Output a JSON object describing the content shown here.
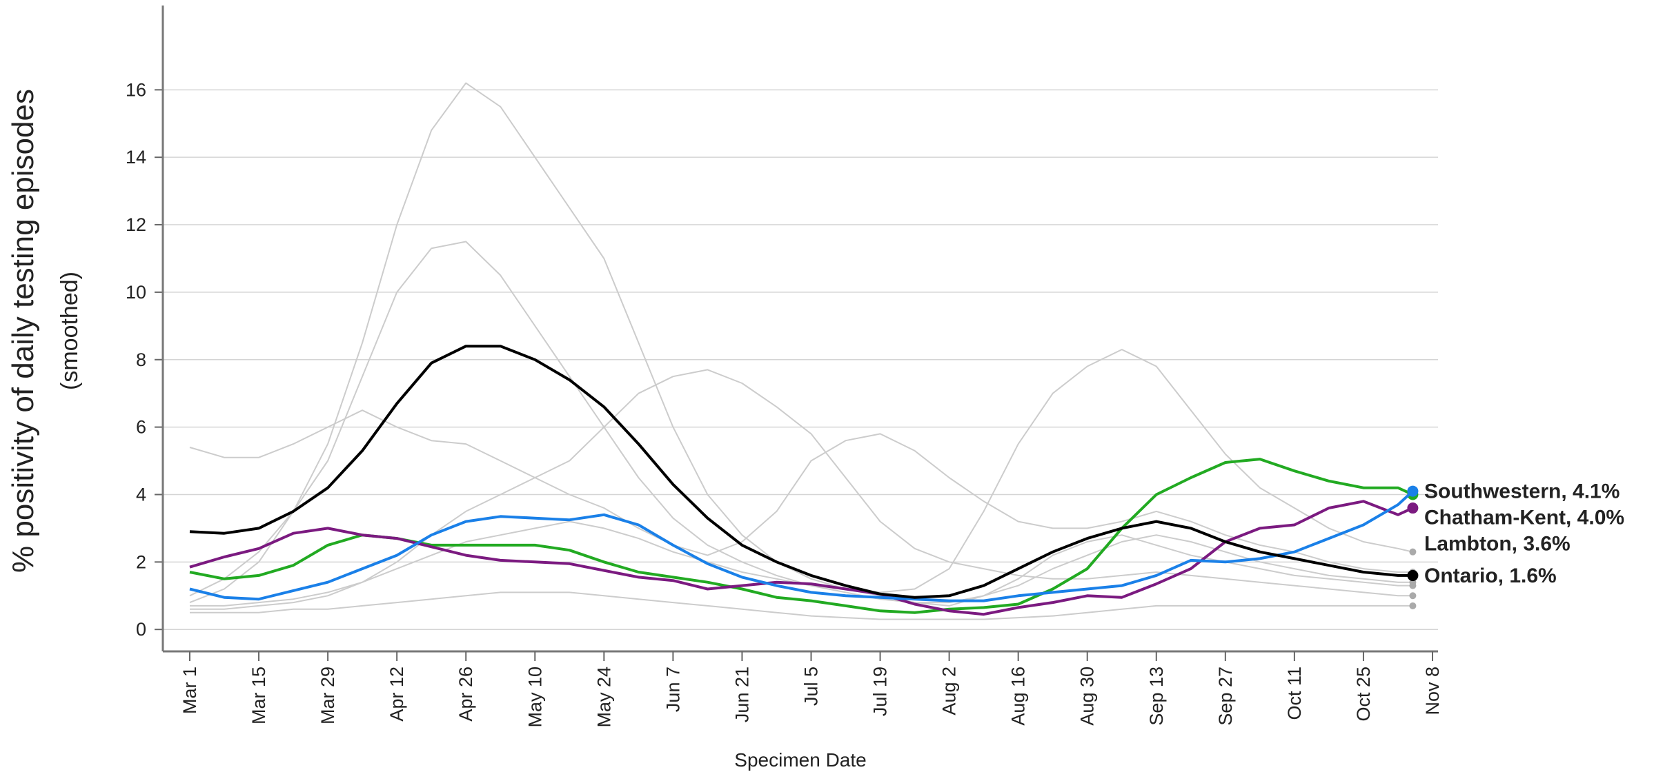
{
  "chart_data": {
    "type": "line",
    "y_label": "% positivity of daily testing episodes",
    "y_sublabel": "(smoothed)",
    "x_label": "Specimen Date",
    "x": [
      "Mar 1",
      "Mar 8",
      "Mar 15",
      "Mar 22",
      "Mar 29",
      "Apr 5",
      "Apr 12",
      "Apr 19",
      "Apr 26",
      "May 3",
      "May 10",
      "May 17",
      "May 24",
      "May 31",
      "Jun 7",
      "Jun 14",
      "Jun 21",
      "Jun 28",
      "Jul 5",
      "Jul 12",
      "Jul 19",
      "Jul 26",
      "Aug 2",
      "Aug 9",
      "Aug 16",
      "Aug 23",
      "Aug 30",
      "Sep 6",
      "Sep 13",
      "Sep 20",
      "Sep 27",
      "Oct 4",
      "Oct 11",
      "Oct 18",
      "Oct 25",
      "Nov 1",
      "Nov 4"
    ],
    "xticks": [
      "Mar 1",
      "Mar 15",
      "Mar 29",
      "Apr 12",
      "Apr 26",
      "May 10",
      "May 24",
      "Jun 7",
      "Jun 21",
      "Jul 5",
      "Jul 19",
      "Aug 2",
      "Aug 16",
      "Aug 30",
      "Sep 13",
      "Sep 27",
      "Oct 11",
      "Oct 25",
      "Nov 8"
    ],
    "ylim": [
      -0.65,
      18.5
    ],
    "yticks": [
      0,
      2,
      4,
      6,
      8,
      10,
      12,
      14,
      16
    ],
    "grid": true,
    "series": [
      {
        "color": "#cccccc",
        "values": [
          0.8,
          1.2,
          2.0,
          3.5,
          5.5,
          8.5,
          12.0,
          14.8,
          16.2,
          15.5,
          14.0,
          12.5,
          11.0,
          8.5,
          6.0,
          4.0,
          2.8,
          2.0,
          1.5,
          1.2,
          1.0,
          0.8,
          0.7,
          1.0,
          1.5,
          2.2,
          2.6,
          2.8,
          2.5,
          2.2,
          2.0,
          1.8,
          1.6,
          1.5,
          1.4,
          1.3,
          1.3
        ]
      },
      {
        "color": "#cccccc",
        "values": [
          1.0,
          1.5,
          2.3,
          3.5,
          5.0,
          7.5,
          10.0,
          11.3,
          11.5,
          10.5,
          9.0,
          7.5,
          6.0,
          4.5,
          3.3,
          2.5,
          2.0,
          1.6,
          1.3,
          1.1,
          0.9,
          0.8,
          0.8,
          1.0,
          1.3,
          1.8,
          2.2,
          2.6,
          2.8,
          2.6,
          2.3,
          2.0,
          1.8,
          1.6,
          1.5,
          1.4,
          1.4
        ]
      },
      {
        "color": "#cccccc",
        "values": [
          0.7,
          0.7,
          0.8,
          0.9,
          1.1,
          1.4,
          1.8,
          2.2,
          2.6,
          2.8,
          3.0,
          3.2,
          3.0,
          2.7,
          2.3,
          2.0,
          1.7,
          1.5,
          1.3,
          1.2,
          1.1,
          1.2,
          1.8,
          3.5,
          5.5,
          7.0,
          7.8,
          8.3,
          7.8,
          6.5,
          5.2,
          4.2,
          3.6,
          3.0,
          2.6,
          2.4,
          2.3
        ]
      },
      {
        "color": "#cccccc",
        "values": [
          0.6,
          0.6,
          0.7,
          0.8,
          1.0,
          1.4,
          2.0,
          2.8,
          3.5,
          4.0,
          4.5,
          5.0,
          6.0,
          7.0,
          7.5,
          7.7,
          7.3,
          6.6,
          5.8,
          4.5,
          3.2,
          2.4,
          2.0,
          1.8,
          1.6,
          1.5,
          1.5,
          1.6,
          1.7,
          1.6,
          1.5,
          1.4,
          1.3,
          1.2,
          1.1,
          1.0,
          1.0
        ]
      },
      {
        "color": "#cccccc",
        "values": [
          5.4,
          5.1,
          5.1,
          5.5,
          6.0,
          6.5,
          6.0,
          5.6,
          5.5,
          5.0,
          4.5,
          4.0,
          3.6,
          3.0,
          2.5,
          2.2,
          2.6,
          3.5,
          5.0,
          5.6,
          5.8,
          5.3,
          4.5,
          3.8,
          3.2,
          3.0,
          3.0,
          3.2,
          3.5,
          3.2,
          2.8,
          2.5,
          2.3,
          2.0,
          1.8,
          1.7,
          1.7
        ]
      },
      {
        "color": "#cccccc",
        "values": [
          0.5,
          0.5,
          0.5,
          0.6,
          0.6,
          0.7,
          0.8,
          0.9,
          1.0,
          1.1,
          1.1,
          1.1,
          1.0,
          0.9,
          0.8,
          0.7,
          0.6,
          0.5,
          0.4,
          0.35,
          0.3,
          0.3,
          0.3,
          0.3,
          0.35,
          0.4,
          0.5,
          0.6,
          0.7,
          0.7,
          0.7,
          0.7,
          0.7,
          0.7,
          0.7,
          0.7,
          0.7
        ]
      },
      {
        "name": "Chatham-Kent",
        "end_label": "Chatham-Kent, 4.0%",
        "color": "#22aa22",
        "values": [
          1.7,
          1.5,
          1.6,
          1.9,
          2.5,
          2.8,
          2.7,
          2.5,
          2.5,
          2.5,
          2.5,
          2.35,
          2.0,
          1.7,
          1.55,
          1.4,
          1.2,
          0.95,
          0.85,
          0.7,
          0.55,
          0.5,
          0.6,
          0.65,
          0.75,
          1.2,
          1.8,
          3.0,
          4.0,
          4.5,
          4.95,
          5.05,
          4.7,
          4.4,
          4.2,
          4.2,
          4.0
        ]
      },
      {
        "name": "Lambton",
        "end_label": "Lambton, 3.6%",
        "color": "#7b1a80",
        "values": [
          1.85,
          2.15,
          2.4,
          2.85,
          3.0,
          2.8,
          2.7,
          2.45,
          2.2,
          2.05,
          2.0,
          1.95,
          1.75,
          1.55,
          1.45,
          1.2,
          1.3,
          1.4,
          1.35,
          1.2,
          1.05,
          0.75,
          0.55,
          0.45,
          0.65,
          0.8,
          1.0,
          0.95,
          1.35,
          1.8,
          2.6,
          3.0,
          3.1,
          3.6,
          3.8,
          3.4,
          3.6
        ]
      },
      {
        "name": "Southwestern",
        "end_label": "Southwestern, 4.1%",
        "color": "#1a80e8",
        "values": [
          1.2,
          0.95,
          0.9,
          1.15,
          1.4,
          1.8,
          2.2,
          2.8,
          3.2,
          3.35,
          3.3,
          3.25,
          3.4,
          3.1,
          2.5,
          1.95,
          1.55,
          1.3,
          1.1,
          1.0,
          0.95,
          0.9,
          0.85,
          0.85,
          1.0,
          1.1,
          1.2,
          1.3,
          1.6,
          2.05,
          2.0,
          2.1,
          2.3,
          2.7,
          3.1,
          3.7,
          4.1
        ]
      },
      {
        "name": "Ontario",
        "end_label": "Ontario, 1.6%",
        "color": "#000000",
        "values": [
          2.9,
          2.85,
          3.0,
          3.5,
          4.2,
          5.3,
          6.7,
          7.9,
          8.4,
          8.4,
          8.0,
          7.4,
          6.6,
          5.5,
          4.3,
          3.3,
          2.5,
          2.0,
          1.6,
          1.3,
          1.05,
          0.95,
          1.0,
          1.3,
          1.8,
          2.3,
          2.7,
          3.0,
          3.2,
          3.0,
          2.6,
          2.3,
          2.1,
          1.9,
          1.7,
          1.6,
          1.6
        ]
      }
    ]
  }
}
